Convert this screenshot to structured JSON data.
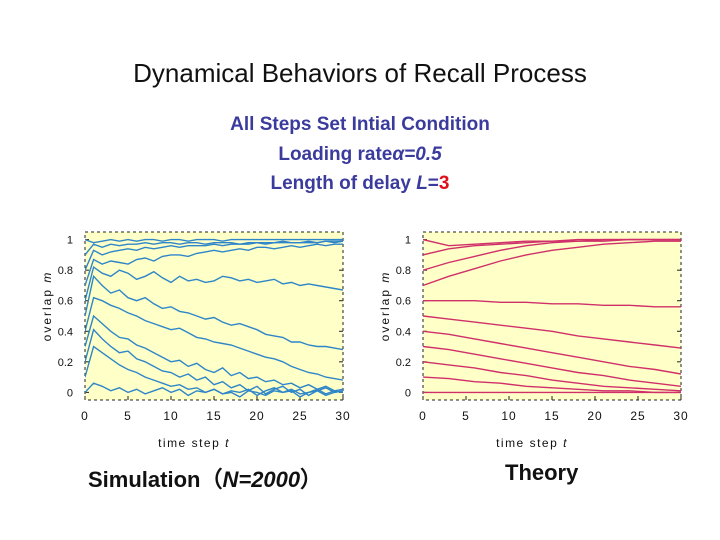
{
  "title": "Dynamical Behaviors of Recall Process",
  "subtitle": {
    "line1": "All Steps Set Intial Condition",
    "line2_prefix": "Loading rate",
    "line2_alpha": "α=0.5",
    "line3_prefix": "Length of delay ",
    "line3_var": "L",
    "line3_eq": "=",
    "line3_val": "3"
  },
  "captions": {
    "sim_prefix": "Simulation（",
    "sim_n": "N=2000",
    "sim_suffix": "）",
    "theory": "Theory"
  },
  "colors": {
    "panel_bg": "#ffffc8",
    "simulation": "#2e86c9",
    "theory": "#d0306a",
    "subtitle": "#3b3b9e",
    "accent": "#e0101a"
  },
  "chart_data": [
    {
      "type": "line",
      "name": "simulation",
      "xlabel": "time step",
      "xlabel_var": "t",
      "ylabel": "overlap",
      "ylabel_var": "m",
      "xlim": [
        0,
        30
      ],
      "ylim": [
        -0.05,
        1.05
      ],
      "xticks": [
        "0",
        "5",
        "10",
        "15",
        "20",
        "25",
        "30"
      ],
      "yticks": [
        "0",
        "0.2",
        "0.4",
        "0.6",
        "0.8",
        "1"
      ],
      "grid": false,
      "x": [
        0,
        1,
        2,
        3,
        4,
        5,
        6,
        7,
        8,
        9,
        10,
        11,
        12,
        13,
        14,
        15,
        16,
        17,
        18,
        19,
        20,
        21,
        22,
        23,
        24,
        25,
        26,
        27,
        28,
        29,
        30
      ],
      "series": [
        {
          "values": [
            1,
            0.98,
            0.99,
            1,
            0.99,
            1,
            0.99,
            1,
            1,
            0.99,
            1,
            1,
            0.99,
            1,
            1,
            1,
            0.99,
            1,
            1,
            1,
            1,
            1,
            1,
            1,
            1,
            1,
            1,
            1,
            1,
            1,
            1
          ]
        },
        {
          "values": [
            0.9,
            0.97,
            0.95,
            0.97,
            0.96,
            0.97,
            0.97,
            0.98,
            0.97,
            0.98,
            0.98,
            0.97,
            0.98,
            0.98,
            0.97,
            0.98,
            0.98,
            0.98,
            0.97,
            0.98,
            0.98,
            0.98,
            0.98,
            0.99,
            0.98,
            0.98,
            0.99,
            0.98,
            0.99,
            0.99,
            0.99
          ]
        },
        {
          "values": [
            0.8,
            0.93,
            0.9,
            0.92,
            0.93,
            0.94,
            0.93,
            0.95,
            0.94,
            0.95,
            0.96,
            0.95,
            0.96,
            0.96,
            0.96,
            0.97,
            0.96,
            0.97,
            0.97,
            0.97,
            0.98,
            0.97,
            0.98,
            0.98,
            0.98,
            0.98,
            0.98,
            0.98,
            0.99,
            0.98,
            0.99
          ]
        },
        {
          "values": [
            0.7,
            0.87,
            0.84,
            0.86,
            0.85,
            0.84,
            0.87,
            0.88,
            0.86,
            0.89,
            0.9,
            0.9,
            0.89,
            0.91,
            0.92,
            0.93,
            0.92,
            0.93,
            0.94,
            0.93,
            0.95,
            0.95,
            0.94,
            0.95,
            0.96,
            0.95,
            0.96,
            0.97,
            0.96,
            0.97,
            0.97
          ]
        },
        {
          "values": [
            0.6,
            0.82,
            0.78,
            0.76,
            0.8,
            0.78,
            0.74,
            0.76,
            0.79,
            0.75,
            0.72,
            0.76,
            0.73,
            0.74,
            0.72,
            0.73,
            0.76,
            0.75,
            0.73,
            0.74,
            0.72,
            0.73,
            0.74,
            0.71,
            0.72,
            0.7,
            0.71,
            0.7,
            0.69,
            0.68,
            0.67
          ]
        },
        {
          "values": [
            0.5,
            0.76,
            0.7,
            0.65,
            0.67,
            0.62,
            0.6,
            0.62,
            0.58,
            0.55,
            0.56,
            0.53,
            0.52,
            0.5,
            0.48,
            0.49,
            0.46,
            0.44,
            0.45,
            0.43,
            0.41,
            0.38,
            0.37,
            0.36,
            0.33,
            0.33,
            0.31,
            0.3,
            0.3,
            0.29,
            0.28
          ]
        },
        {
          "values": [
            0.4,
            0.62,
            0.6,
            0.57,
            0.55,
            0.52,
            0.5,
            0.47,
            0.45,
            0.43,
            0.41,
            0.42,
            0.39,
            0.36,
            0.35,
            0.33,
            0.32,
            0.31,
            0.29,
            0.27,
            0.25,
            0.23,
            0.22,
            0.2,
            0.17,
            0.15,
            0.13,
            0.12,
            0.1,
            0.09,
            0.08
          ]
        },
        {
          "values": [
            0.3,
            0.5,
            0.45,
            0.4,
            0.36,
            0.35,
            0.31,
            0.29,
            0.26,
            0.23,
            0.2,
            0.21,
            0.17,
            0.19,
            0.15,
            0.13,
            0.16,
            0.11,
            0.13,
            0.09,
            0.1,
            0.07,
            0.08,
            0.05,
            0.06,
            0.03,
            0.05,
            0.02,
            0.04,
            0.01,
            0.02
          ]
        },
        {
          "values": [
            0.2,
            0.41,
            0.35,
            0.3,
            0.26,
            0.27,
            0.22,
            0.2,
            0.17,
            0.14,
            0.13,
            0.1,
            0.12,
            0.08,
            0.1,
            0.05,
            0.07,
            0.03,
            0.05,
            0.01,
            0.04,
            -0.01,
            0.02,
            0.04,
            0.0,
            0.02,
            -0.02,
            0.01,
            0.03,
            0.0,
            0.01
          ]
        },
        {
          "values": [
            0.1,
            0.3,
            0.26,
            0.22,
            0.18,
            0.15,
            0.13,
            0.1,
            0.08,
            0.06,
            0.04,
            0.05,
            0.02,
            0.03,
            0.0,
            0.02,
            -0.01,
            0.01,
            0.0,
            0.02,
            -0.02,
            0.01,
            0.03,
            0.0,
            0.01,
            -0.03,
            0.0,
            0.02,
            -0.01,
            0.01,
            0.0
          ]
        },
        {
          "values": [
            0.0,
            0.06,
            0.04,
            0.01,
            0.03,
            0.0,
            0.02,
            -0.01,
            0.01,
            0.03,
            0.0,
            0.02,
            -0.02,
            0.01,
            0.0,
            0.02,
            -0.01,
            0.0,
            -0.03,
            0.01,
            0.0,
            -0.02,
            0.01,
            0.0,
            0.02,
            -0.01,
            0.0,
            0.01,
            -0.02,
            0.0,
            0.01
          ]
        }
      ]
    },
    {
      "type": "line",
      "name": "theory",
      "xlabel": "time step",
      "xlabel_var": "t",
      "ylabel": "overlap",
      "ylabel_var": "m",
      "xlim": [
        0,
        30
      ],
      "ylim": [
        -0.05,
        1.05
      ],
      "xticks": [
        "0",
        "5",
        "10",
        "15",
        "20",
        "25",
        "30"
      ],
      "yticks": [
        "0",
        "0.2",
        "0.4",
        "0.6",
        "0.8",
        "1"
      ],
      "grid": false,
      "x": [
        0,
        3,
        6,
        9,
        12,
        15,
        18,
        21,
        24,
        27,
        30
      ],
      "series": [
        {
          "values": [
            1,
            0.96,
            0.97,
            0.98,
            0.99,
            0.99,
            1,
            1,
            1,
            1,
            1
          ]
        },
        {
          "values": [
            0.9,
            0.94,
            0.96,
            0.97,
            0.98,
            0.99,
            0.99,
            1,
            1,
            1,
            1
          ]
        },
        {
          "values": [
            0.8,
            0.85,
            0.89,
            0.93,
            0.96,
            0.98,
            0.99,
            0.99,
            1,
            1,
            1
          ]
        },
        {
          "values": [
            0.7,
            0.76,
            0.81,
            0.86,
            0.9,
            0.93,
            0.95,
            0.97,
            0.98,
            0.99,
            0.99
          ]
        },
        {
          "values": [
            0.6,
            0.6,
            0.6,
            0.59,
            0.59,
            0.58,
            0.58,
            0.57,
            0.57,
            0.56,
            0.56
          ]
        },
        {
          "values": [
            0.5,
            0.48,
            0.46,
            0.44,
            0.42,
            0.4,
            0.37,
            0.35,
            0.33,
            0.31,
            0.29
          ]
        },
        {
          "values": [
            0.4,
            0.38,
            0.35,
            0.32,
            0.29,
            0.26,
            0.23,
            0.2,
            0.17,
            0.15,
            0.12
          ]
        },
        {
          "values": [
            0.3,
            0.28,
            0.25,
            0.22,
            0.19,
            0.16,
            0.13,
            0.11,
            0.08,
            0.06,
            0.04
          ]
        },
        {
          "values": [
            0.2,
            0.18,
            0.16,
            0.13,
            0.11,
            0.08,
            0.06,
            0.04,
            0.03,
            0.02,
            0.01
          ]
        },
        {
          "values": [
            0.1,
            0.09,
            0.07,
            0.06,
            0.04,
            0.03,
            0.02,
            0.01,
            0.01,
            0.0,
            0.0
          ]
        },
        {
          "values": [
            0.0,
            0.0,
            0.0,
            0.0,
            0.0,
            0.0,
            0.0,
            0.0,
            0.0,
            0.0,
            0.0
          ]
        }
      ]
    }
  ]
}
